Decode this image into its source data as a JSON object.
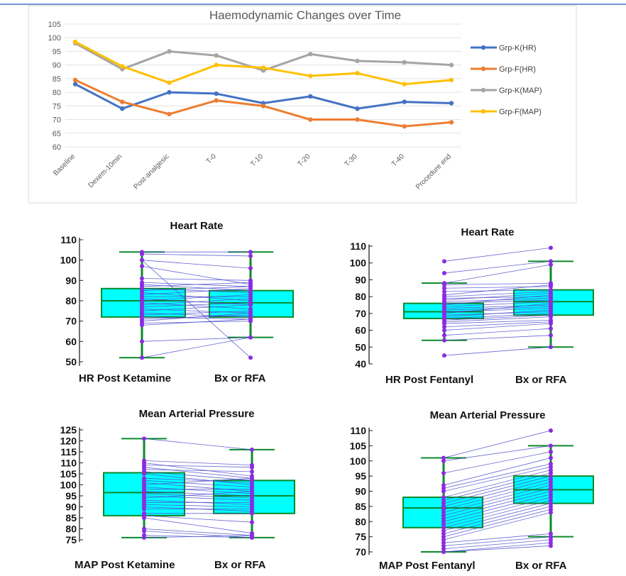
{
  "chart_data": [
    {
      "type": "line",
      "title": "Haemodynamic Changes over Time",
      "categories": [
        "Baseline",
        "Dexem-10min",
        "Post-analgesic",
        "T-0",
        "T-10",
        "T-20",
        "T-30",
        "T-40",
        "Procedure end"
      ],
      "ylim": [
        60,
        105
      ],
      "yticks": [
        60,
        65,
        70,
        75,
        80,
        85,
        90,
        95,
        100,
        105
      ],
      "grid": true,
      "legend": "right",
      "series": [
        {
          "name": "Grp-K(HR)",
          "color": "#4472C4",
          "values": [
            83,
            74,
            80,
            79.5,
            76,
            78.5,
            74,
            76.5,
            76
          ]
        },
        {
          "name": "Grp-F(HR)",
          "color": "#ED7D31",
          "values": [
            84.5,
            76.5,
            72,
            77,
            75,
            70,
            70,
            67.5,
            69
          ]
        },
        {
          "name": "Grp-K(MAP)",
          "color": "#A5A5A5",
          "values": [
            98,
            88.5,
            95,
            93.5,
            88,
            94,
            91.5,
            91,
            90
          ]
        },
        {
          "name": "Grp-F(MAP)",
          "color": "#FFC000",
          "values": [
            98.5,
            89.5,
            83.5,
            90,
            89,
            86,
            87,
            83,
            84.5
          ]
        }
      ]
    },
    {
      "type": "box",
      "title": "Heart Rate",
      "ylim": [
        48,
        111
      ],
      "yticks": [
        50,
        60,
        70,
        80,
        90,
        100,
        110
      ],
      "groups": [
        {
          "label": "HR Post Ketamine",
          "min": 52,
          "q1": 72,
          "median": 80,
          "q3": 86,
          "max": 104
        },
        {
          "label": "Bx or RFA",
          "min": 62,
          "q1": 72,
          "median": 79,
          "q3": 85,
          "max": 104
        }
      ],
      "paired": [
        [
          104,
          104
        ],
        [
          103,
          102
        ],
        [
          100,
          96
        ],
        [
          97,
          88
        ],
        [
          91,
          90
        ],
        [
          89,
          87
        ],
        [
          88,
          85
        ],
        [
          87,
          89
        ],
        [
          86,
          84
        ],
        [
          85,
          87
        ],
        [
          84,
          80
        ],
        [
          83,
          86
        ],
        [
          82,
          82
        ],
        [
          81,
          78
        ],
        [
          80,
          83
        ],
        [
          79,
          76
        ],
        [
          78,
          81
        ],
        [
          77,
          79
        ],
        [
          76,
          74
        ],
        [
          75,
          78
        ],
        [
          74,
          72
        ],
        [
          73,
          75
        ],
        [
          72,
          71
        ],
        [
          71,
          73
        ],
        [
          70,
          74
        ],
        [
          69,
          70
        ],
        [
          68,
          71
        ],
        [
          60,
          62
        ],
        [
          52,
          62
        ],
        [
          100,
          52
        ]
      ]
    },
    {
      "type": "box",
      "title": "Heart Rate",
      "ylim": [
        40,
        111
      ],
      "yticks": [
        40,
        50,
        60,
        70,
        80,
        90,
        100,
        110
      ],
      "groups": [
        {
          "label": "HR Post Fentanyl",
          "min": 54,
          "q1": 67,
          "median": 71,
          "q3": 76,
          "max": 88
        },
        {
          "label": "Bx or RFA",
          "min": 50,
          "q1": 69,
          "median": 77,
          "q3": 84,
          "max": 101
        }
      ],
      "paired": [
        [
          101,
          109
        ],
        [
          94,
          101
        ],
        [
          88,
          99
        ],
        [
          87,
          88
        ],
        [
          85,
          86
        ],
        [
          83,
          84
        ],
        [
          81,
          87
        ],
        [
          80,
          83
        ],
        [
          79,
          80
        ],
        [
          78,
          82
        ],
        [
          77,
          79
        ],
        [
          76,
          78
        ],
        [
          75,
          81
        ],
        [
          74,
          77
        ],
        [
          73,
          75
        ],
        [
          72,
          74
        ],
        [
          71,
          73
        ],
        [
          70,
          76
        ],
        [
          69,
          71
        ],
        [
          68,
          72
        ],
        [
          67,
          70
        ],
        [
          66,
          69
        ],
        [
          65,
          68
        ],
        [
          64,
          66
        ],
        [
          62,
          65
        ],
        [
          60,
          64
        ],
        [
          57,
          61
        ],
        [
          54,
          57
        ],
        [
          45,
          50
        ]
      ]
    },
    {
      "type": "box",
      "title": "Mean Arterial Pressure",
      "ylim": [
        74,
        126
      ],
      "yticks": [
        75,
        80,
        85,
        90,
        95,
        100,
        105,
        110,
        115,
        120,
        125
      ],
      "groups": [
        {
          "label": "MAP Post Ketamine",
          "min": 76,
          "q1": 86,
          "median": 96.5,
          "q3": 105.5,
          "max": 121
        },
        {
          "label": "Bx or RFA",
          "min": 76,
          "q1": 87,
          "median": 95,
          "q3": 102,
          "max": 116
        }
      ],
      "paired": [
        [
          121,
          116
        ],
        [
          111,
          109
        ],
        [
          110,
          104
        ],
        [
          109,
          108
        ],
        [
          108,
          103
        ],
        [
          107,
          106
        ],
        [
          106,
          102
        ],
        [
          105,
          100
        ],
        [
          103,
          101
        ],
        [
          102,
          99
        ],
        [
          101,
          97
        ],
        [
          100,
          103
        ],
        [
          99,
          96
        ],
        [
          98,
          98
        ],
        [
          97,
          95
        ],
        [
          96,
          94
        ],
        [
          95,
          93
        ],
        [
          94,
          97
        ],
        [
          93,
          91
        ],
        [
          92,
          92
        ],
        [
          91,
          90
        ],
        [
          90,
          88
        ],
        [
          89,
          89
        ],
        [
          87,
          87
        ],
        [
          86,
          83
        ],
        [
          85,
          78
        ],
        [
          80,
          77
        ],
        [
          79,
          76
        ],
        [
          77,
          76
        ],
        [
          76,
          77
        ]
      ]
    },
    {
      "type": "box",
      "title": "Mean Arterial Pressure",
      "ylim": [
        69,
        111
      ],
      "yticks": [
        70,
        75,
        80,
        85,
        90,
        95,
        100,
        105,
        110
      ],
      "groups": [
        {
          "label": "MAP Post Fentanyl",
          "min": 70,
          "q1": 78,
          "median": 84.5,
          "q3": 88,
          "max": 101
        },
        {
          "label": "Bx or RFA",
          "min": 75,
          "q1": 86,
          "median": 90.5,
          "q3": 95,
          "max": 105
        }
      ],
      "paired": [
        [
          101,
          110
        ],
        [
          100,
          105
        ],
        [
          96,
          103
        ],
        [
          92,
          101
        ],
        [
          91,
          99
        ],
        [
          90,
          98
        ],
        [
          88,
          97
        ],
        [
          87,
          96
        ],
        [
          86,
          95
        ],
        [
          85,
          94
        ],
        [
          84,
          93
        ],
        [
          83,
          92
        ],
        [
          82,
          91
        ],
        [
          81,
          90
        ],
        [
          80,
          89
        ],
        [
          79,
          88
        ],
        [
          78,
          87
        ],
        [
          77,
          86
        ],
        [
          76,
          85
        ],
        [
          75,
          84
        ],
        [
          74,
          83
        ],
        [
          73,
          76
        ],
        [
          72,
          75
        ],
        [
          71,
          74
        ],
        [
          70,
          72
        ],
        [
          70,
          73
        ]
      ]
    }
  ]
}
